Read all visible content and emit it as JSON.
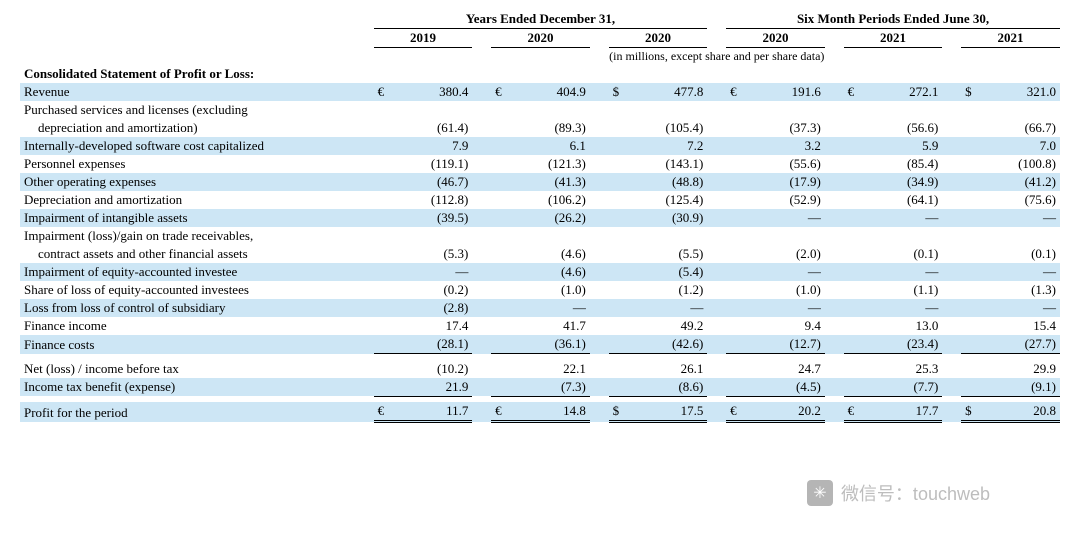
{
  "colors": {
    "row_shade": "#cde6f5",
    "text": "#000000",
    "background": "#ffffff",
    "rule": "#000000"
  },
  "typography": {
    "font_family": "Times New Roman",
    "base_size_pt": 10,
    "header_weight": "bold"
  },
  "header": {
    "group_left": "Years Ended December 31,",
    "group_right": "Six Month Periods Ended June 30,",
    "years": [
      "2019",
      "2020",
      "2020",
      "2020",
      "2021",
      "2021"
    ],
    "subnote": "(in millions, except share and per share data)"
  },
  "section_title": "Consolidated Statement of Profit or Loss:",
  "currencies": [
    "€",
    "€",
    "$",
    "€",
    "€",
    "$"
  ],
  "rows": [
    {
      "label": "Revenue",
      "vals": [
        "380.4",
        "404.9",
        "477.8",
        "191.6",
        "272.1",
        "321.0"
      ],
      "show_currency": true,
      "shade": true
    },
    {
      "label": "Purchased services and licenses (excluding",
      "label2": "depreciation and amortization)",
      "vals": [
        "(61.4)",
        "(89.3)",
        "(105.4)",
        "(37.3)",
        "(56.6)",
        "(66.7)"
      ]
    },
    {
      "label": "Internally-developed software cost capitalized",
      "vals": [
        "7.9",
        "6.1",
        "7.2",
        "3.2",
        "5.9",
        "7.0"
      ],
      "shade": true
    },
    {
      "label": "Personnel expenses",
      "vals": [
        "(119.1)",
        "(121.3)",
        "(143.1)",
        "(55.6)",
        "(85.4)",
        "(100.8)"
      ]
    },
    {
      "label": "Other operating expenses",
      "vals": [
        "(46.7)",
        "(41.3)",
        "(48.8)",
        "(17.9)",
        "(34.9)",
        "(41.2)"
      ],
      "shade": true
    },
    {
      "label": "Depreciation and amortization",
      "vals": [
        "(112.8)",
        "(106.2)",
        "(125.4)",
        "(52.9)",
        "(64.1)",
        "(75.6)"
      ]
    },
    {
      "label": "Impairment of intangible assets",
      "vals": [
        "(39.5)",
        "(26.2)",
        "(30.9)",
        "—",
        "—",
        "—"
      ],
      "shade": true
    },
    {
      "label": "Impairment (loss)/gain on trade receivables,",
      "label2": "contract assets and other financial assets",
      "vals": [
        "(5.3)",
        "(4.6)",
        "(5.5)",
        "(2.0)",
        "(0.1)",
        "(0.1)"
      ]
    },
    {
      "label": "Impairment of equity-accounted investee",
      "vals": [
        "—",
        "(4.6)",
        "(5.4)",
        "—",
        "—",
        "—"
      ],
      "shade": true
    },
    {
      "label": "Share of loss of equity-accounted investees",
      "vals": [
        "(0.2)",
        "(1.0)",
        "(1.2)",
        "(1.0)",
        "(1.1)",
        "(1.3)"
      ]
    },
    {
      "label": "Loss from loss of control of subsidiary",
      "vals": [
        "(2.8)",
        "—",
        "—",
        "—",
        "—",
        "—"
      ],
      "shade": true
    },
    {
      "label": "Finance income",
      "vals": [
        "17.4",
        "41.7",
        "49.2",
        "9.4",
        "13.0",
        "15.4"
      ]
    },
    {
      "label": "Finance costs",
      "vals": [
        "(28.1)",
        "(36.1)",
        "(42.6)",
        "(12.7)",
        "(23.4)",
        "(27.7)"
      ],
      "shade": true,
      "underline": true
    },
    {
      "label": "Net (loss) / income before tax",
      "vals": [
        "(10.2)",
        "22.1",
        "26.1",
        "24.7",
        "25.3",
        "29.9"
      ],
      "spacer_before": true
    },
    {
      "label": "Income tax benefit (expense)",
      "vals": [
        "21.9",
        "(7.3)",
        "(8.6)",
        "(4.5)",
        "(7.7)",
        "(9.1)"
      ],
      "shade": true,
      "underline": true
    },
    {
      "label": "Profit for the period",
      "vals": [
        "11.7",
        "14.8",
        "17.5",
        "20.2",
        "17.7",
        "20.8"
      ],
      "show_currency": true,
      "double_underline": true,
      "spacer_before": true,
      "shade": true
    }
  ],
  "watermark": {
    "icon": "✳",
    "text": "微信号：touchweb"
  }
}
